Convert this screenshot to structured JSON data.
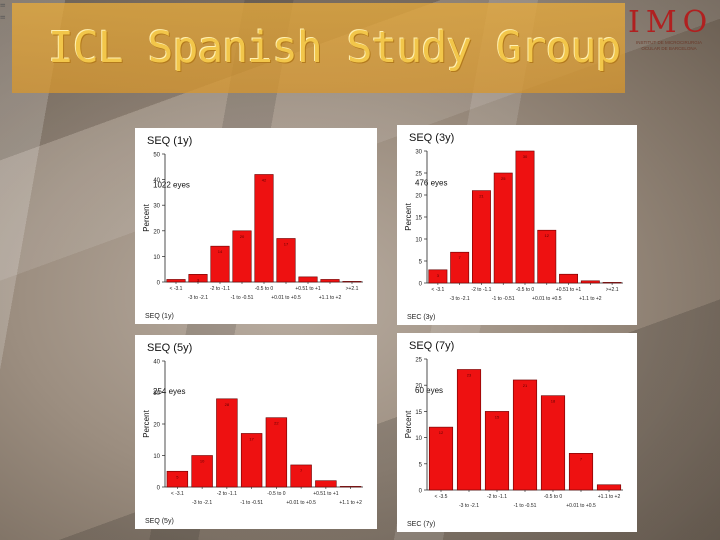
{
  "header": {
    "title": "ICL Spanish Study Group",
    "left_marks": "= ="
  },
  "logo": {
    "text": "IMO",
    "subtitle": "INSTITUT DE MICROCIRURGIA OCULAR DE BARCELONA"
  },
  "colors": {
    "title_bg": "#e3a53c",
    "title_text": "#f2c64a",
    "bar_fill": "#ee1111",
    "bar_stroke": "#6a0000",
    "logo_red": "#b02020"
  },
  "chart_data": [
    {
      "type": "bar",
      "title": "SEQ (1y)",
      "annotation": "1022 eyes",
      "xlabel": "SEQ (1y)",
      "ylabel": "Percent",
      "ylim": [
        0,
        50
      ],
      "yticks": [
        0,
        10,
        20,
        30,
        40,
        50
      ],
      "categories": [
        "< -3.1",
        "-3 to -2.1",
        "-2 to -1.1",
        "-1 to -0.51",
        "-0.5 to 0",
        "+0.01 to +0.5",
        "+0.51 to +1",
        "+1.1 to +2",
        ">+2.1"
      ],
      "tick_rows": [
        [
          "< -3.1",
          "-2 to -1.1",
          "-0.5 to 0",
          "+0.51 to +1",
          ">+2.1"
        ],
        [
          "-3 to -2.1",
          "-1 to -0.51",
          "+0.01 to +0.5",
          "+1.1 to +2"
        ]
      ],
      "values": [
        1,
        3,
        14,
        20,
        42,
        17,
        2,
        1,
        0
      ]
    },
    {
      "type": "bar",
      "title": "SEQ (3y)",
      "annotation": "476 eyes",
      "xlabel": "SEC (3y)",
      "ylabel": "Percent",
      "ylim": [
        0,
        30
      ],
      "yticks": [
        0,
        5,
        10,
        15,
        20,
        25,
        30
      ],
      "categories": [
        "< -3.1",
        "-3 to -2.1",
        "-2 to -1.1",
        "-1 to -0.51",
        "-0.5 to 0",
        "+0.01 to +0.5",
        "+0.51 to +1",
        "+1.1 to +2",
        ">+2.1"
      ],
      "tick_rows": [
        [
          "< -3.1",
          "-2 to -1.1",
          "-0.5 to 0",
          "+0.51 to +1",
          ">+2.1"
        ],
        [
          "-3 to -2.1",
          "-1 to -0.51",
          "+0.01 to +0.5",
          "+1.1 to +2"
        ]
      ],
      "values": [
        3,
        7,
        21,
        25,
        30,
        12,
        2,
        0.5,
        0
      ]
    },
    {
      "type": "bar",
      "title": "SEQ (5y)",
      "annotation": "254 eyes",
      "xlabel": "SEQ (5y)",
      "ylabel": "Percent",
      "ylim": [
        0,
        40
      ],
      "yticks": [
        0,
        10,
        20,
        30,
        40
      ],
      "categories": [
        "< -3.1",
        "-3 to -2.1",
        "-2 to -1.1",
        "-1 to -0.51",
        "-0.5 to 0",
        "+0.01 to +0.5",
        "+0.51 to +1",
        "+1.1 to +2"
      ],
      "tick_rows": [
        [
          "< -3.1",
          "-2 to -1.1",
          "-0.5 to 0",
          "+0.51 to +1"
        ],
        [
          "-3 to -2.1",
          "-1 to -0.51",
          "+0.01 to +0.5",
          "+1.1 to +2"
        ]
      ],
      "values": [
        5,
        10,
        28,
        17,
        22,
        7,
        2,
        0
      ]
    },
    {
      "type": "bar",
      "title": "SEQ (7y)",
      "annotation": "60 eyes",
      "xlabel": "SEC (7y)",
      "ylabel": "Percent",
      "ylim": [
        0,
        25
      ],
      "yticks": [
        0,
        5,
        10,
        15,
        20,
        25
      ],
      "categories": [
        "< -3.5",
        "-3 to -2.1",
        "-2 to -1.1",
        "-1 to -0.51",
        "-0.5 to 0",
        "+0.01 to +0.5",
        "+1.1 to +2"
      ],
      "tick_rows": [
        [
          "< -3.5",
          "-2 to -1.1",
          "-0.5 to 0",
          "+1.1 to +2"
        ],
        [
          "-3 to -2.1",
          "-1 to -0.51",
          "+0.01 to +0.5"
        ]
      ],
      "values": [
        12,
        23,
        15,
        21,
        18,
        7,
        1
      ]
    }
  ]
}
